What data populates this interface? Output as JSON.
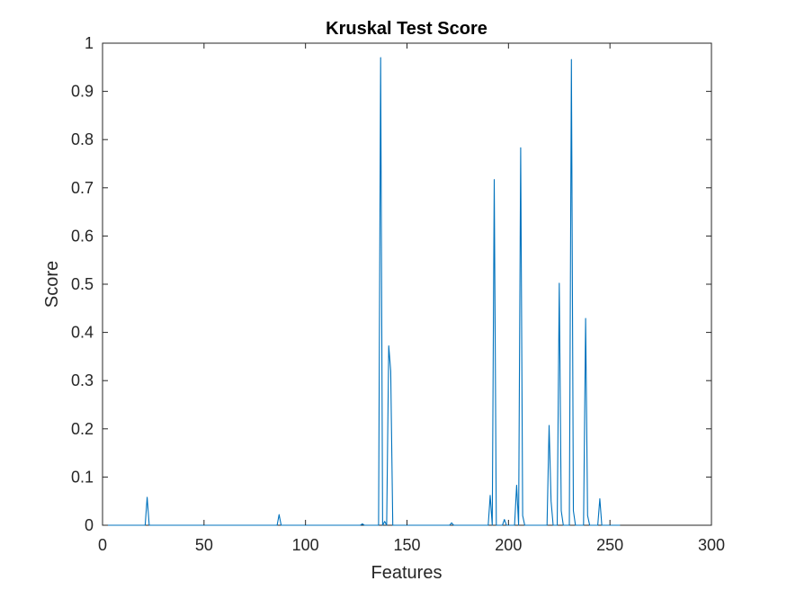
{
  "chart_data": {
    "type": "line",
    "title": "Kruskal Test Score",
    "xlabel": "Features",
    "ylabel": "Score",
    "xlim": [
      0,
      300
    ],
    "ylim": [
      0,
      1
    ],
    "xticks": [
      0,
      50,
      100,
      150,
      200,
      250,
      300
    ],
    "xtick_labels": [
      "0",
      "50",
      "100",
      "150",
      "200",
      "250",
      "300"
    ],
    "yticks": [
      0,
      0.1,
      0.2,
      0.3,
      0.4,
      0.5,
      0.6,
      0.7,
      0.8,
      0.9,
      1
    ],
    "ytick_labels": [
      "0",
      "0.1",
      "0.2",
      "0.3",
      "0.4",
      "0.5",
      "0.6",
      "0.7",
      "0.8",
      "0.9",
      "1"
    ],
    "grid": false,
    "line_color": "#0072BD",
    "series": [
      {
        "x": [
          1,
          21,
          22,
          23,
          28,
          86,
          87,
          88,
          127,
          128,
          129,
          136,
          137,
          138,
          139,
          140,
          141,
          142,
          143,
          144,
          171,
          172,
          173,
          190,
          191,
          192,
          193,
          194,
          197,
          198,
          199,
          200,
          203,
          204,
          205,
          206,
          207,
          208,
          219,
          220,
          221,
          222,
          224,
          225,
          226,
          227,
          230,
          231,
          232,
          233,
          237,
          238,
          239,
          240,
          244,
          245,
          246,
          255
        ],
        "y": [
          0,
          0,
          0.058,
          0,
          0,
          0,
          0.022,
          0,
          0,
          0.003,
          0,
          0,
          0.97,
          0,
          0.008,
          0,
          0.372,
          0.32,
          0,
          0,
          0,
          0.005,
          0,
          0,
          0.062,
          0,
          0.717,
          0,
          0,
          0.012,
          0,
          0,
          0,
          0.083,
          0,
          0.783,
          0.02,
          0,
          0,
          0.207,
          0.05,
          0,
          0,
          0.502,
          0.03,
          0,
          0,
          0.966,
          0.03,
          0,
          0,
          0.429,
          0.02,
          0,
          0,
          0.055,
          0,
          0
        ]
      }
    ]
  }
}
